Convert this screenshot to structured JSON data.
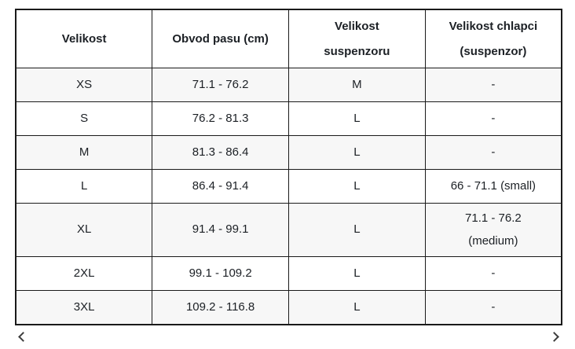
{
  "colors": {
    "border": "#1a1a1a",
    "text": "#1c2025",
    "row_bg": "#ffffff",
    "alt_row_bg": "#f7f7f7",
    "arrow": "#3d3d3d"
  },
  "table": {
    "columns": [
      "Velikost",
      "Obvod pasu (cm)",
      "Velikost\nsuspenzoru",
      "Velikost chlapci\n(suspenzor)"
    ],
    "rows": [
      {
        "size": "XS",
        "waist": "71.1 - 76.2",
        "suspensor": "M",
        "boys": "-"
      },
      {
        "size": "S",
        "waist": "76.2 - 81.3",
        "suspensor": "L",
        "boys": "-"
      },
      {
        "size": "M",
        "waist": "81.3 - 86.4",
        "suspensor": "L",
        "boys": "-"
      },
      {
        "size": "L",
        "waist": "86.4 - 91.4",
        "suspensor": "L",
        "boys": "66 - 71.1 (small)"
      },
      {
        "size": "XL",
        "waist": "91.4 - 99.1",
        "suspensor": "L",
        "boys": "71.1 - 76.2\n(medium)"
      },
      {
        "size": "2XL",
        "waist": "99.1 - 109.2",
        "suspensor": "L",
        "boys": "-"
      },
      {
        "size": "3XL",
        "waist": "109.2 - 116.8",
        "suspensor": "L",
        "boys": "-"
      }
    ]
  },
  "nav": {
    "prev_icon": "chevron-left",
    "next_icon": "chevron-right"
  }
}
